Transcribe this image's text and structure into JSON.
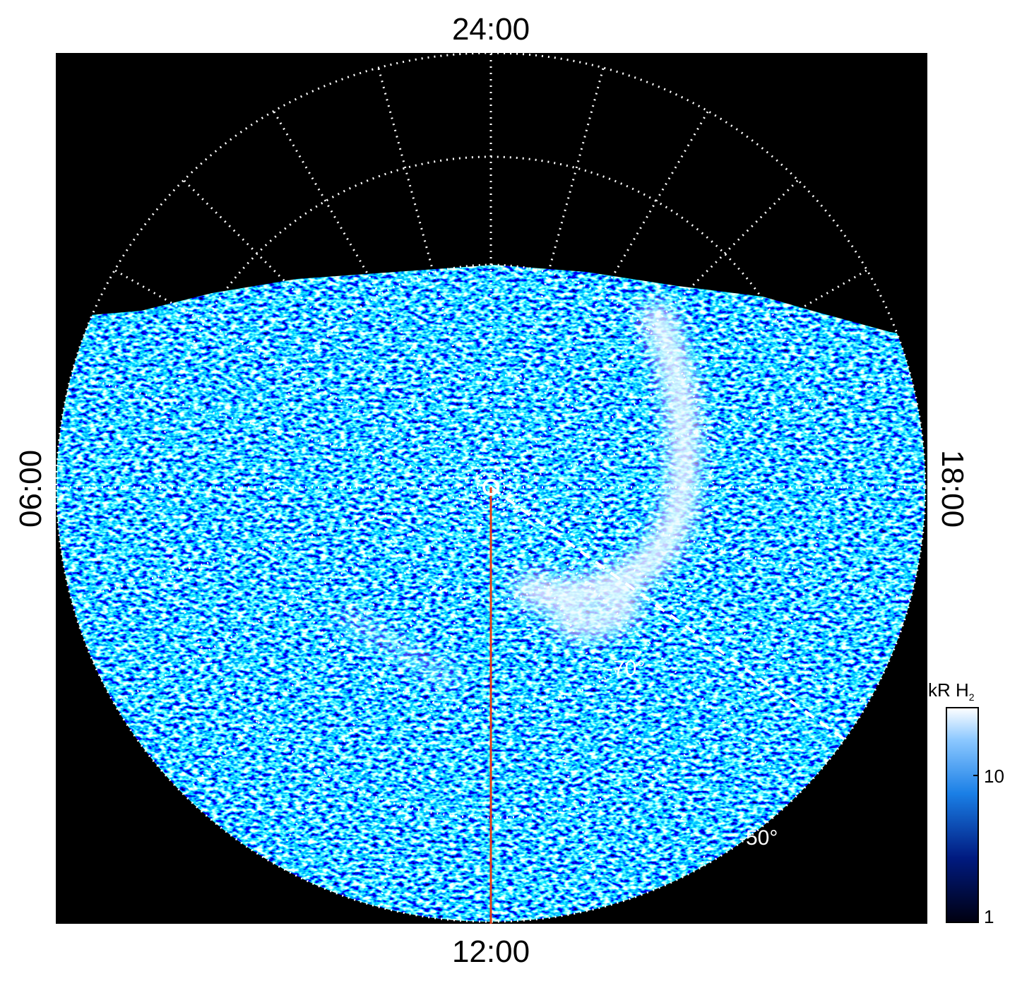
{
  "local_time_labels": {
    "top": "24:00",
    "left": "06:00",
    "right": "18:00",
    "bottom": "12:00"
  },
  "latitude_labels": [
    "-70°",
    "-50°"
  ],
  "colorbar": {
    "title": "kR H",
    "title_subscript": "2",
    "tick_labels": [
      "10",
      "1"
    ]
  }
}
